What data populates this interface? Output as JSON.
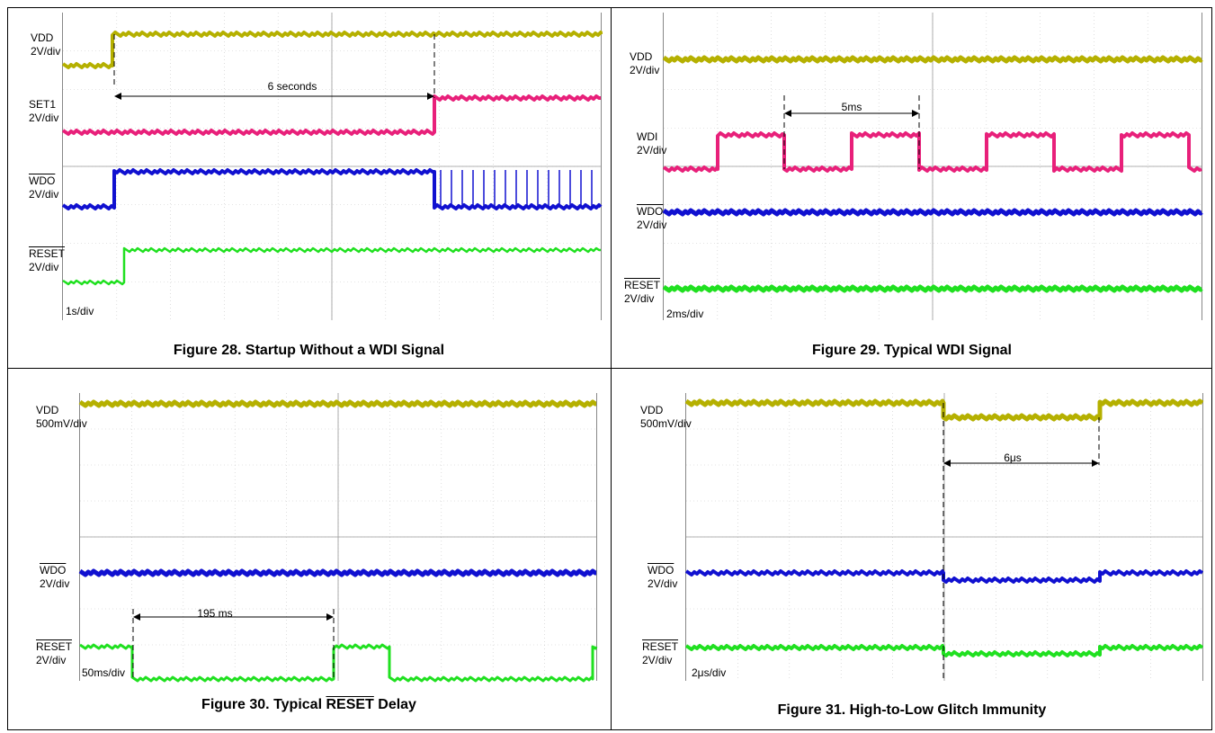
{
  "colors": {
    "vdd": "#b5b000",
    "ch2": "#e8207a",
    "wdo": "#1010d0",
    "reset": "#20e020",
    "grid": "#c8c8c8"
  },
  "chart_data": [
    {
      "type": "line",
      "caption": "Figure 28. Startup Without a WDI Signal",
      "time_div": "1s/div",
      "measurement": "6 seconds",
      "series": [
        {
          "name": "VDD",
          "scale": "2V/div",
          "marker": "C1"
        },
        {
          "name": "SET1",
          "scale": "2V/div",
          "marker": "C2"
        },
        {
          "name": "WDO",
          "scale": "2V/div",
          "marker": "C3",
          "overline": true
        },
        {
          "name": "RESET",
          "scale": "2V/div",
          "marker": "C4",
          "overline": true
        }
      ]
    },
    {
      "type": "line",
      "caption": "Figure 29. Typical WDI Signal",
      "time_div": "2ms/div",
      "measurement": "5ms",
      "series": [
        {
          "name": "VDD",
          "scale": "2V/div",
          "marker": "C1"
        },
        {
          "name": "WDI",
          "scale": "2V/div",
          "marker": "C2"
        },
        {
          "name": "WDO",
          "scale": "2V/div",
          "marker": "C3",
          "overline": true
        },
        {
          "name": "RESET",
          "scale": "2V/div",
          "marker": "C4",
          "overline": true
        }
      ]
    },
    {
      "type": "line",
      "caption_pre": "Figure 30. Typical ",
      "caption_ov": "RESET",
      "caption_post": " Delay",
      "time_div": "50ms/div",
      "measurement": "195 ms",
      "series": [
        {
          "name": "VDD",
          "scale": "500mV/div",
          "marker": "C1"
        },
        {
          "name": "WDO",
          "scale": "2V/div",
          "marker": "C3",
          "overline": true
        },
        {
          "name": "RESET",
          "scale": "2V/div",
          "marker": "C4",
          "overline": true
        }
      ]
    },
    {
      "type": "line",
      "caption": "Figure 31. High-to-Low Glitch Immunity",
      "time_div": "2μs/div",
      "measurement": "6μs",
      "series": [
        {
          "name": "VDD",
          "scale": "500mV/div",
          "marker": "C1"
        },
        {
          "name": "WDO",
          "scale": "2V/div",
          "marker": "C3",
          "overline": true
        },
        {
          "name": "RESET",
          "scale": "2V/div",
          "marker": "C4",
          "overline": true
        }
      ]
    }
  ]
}
